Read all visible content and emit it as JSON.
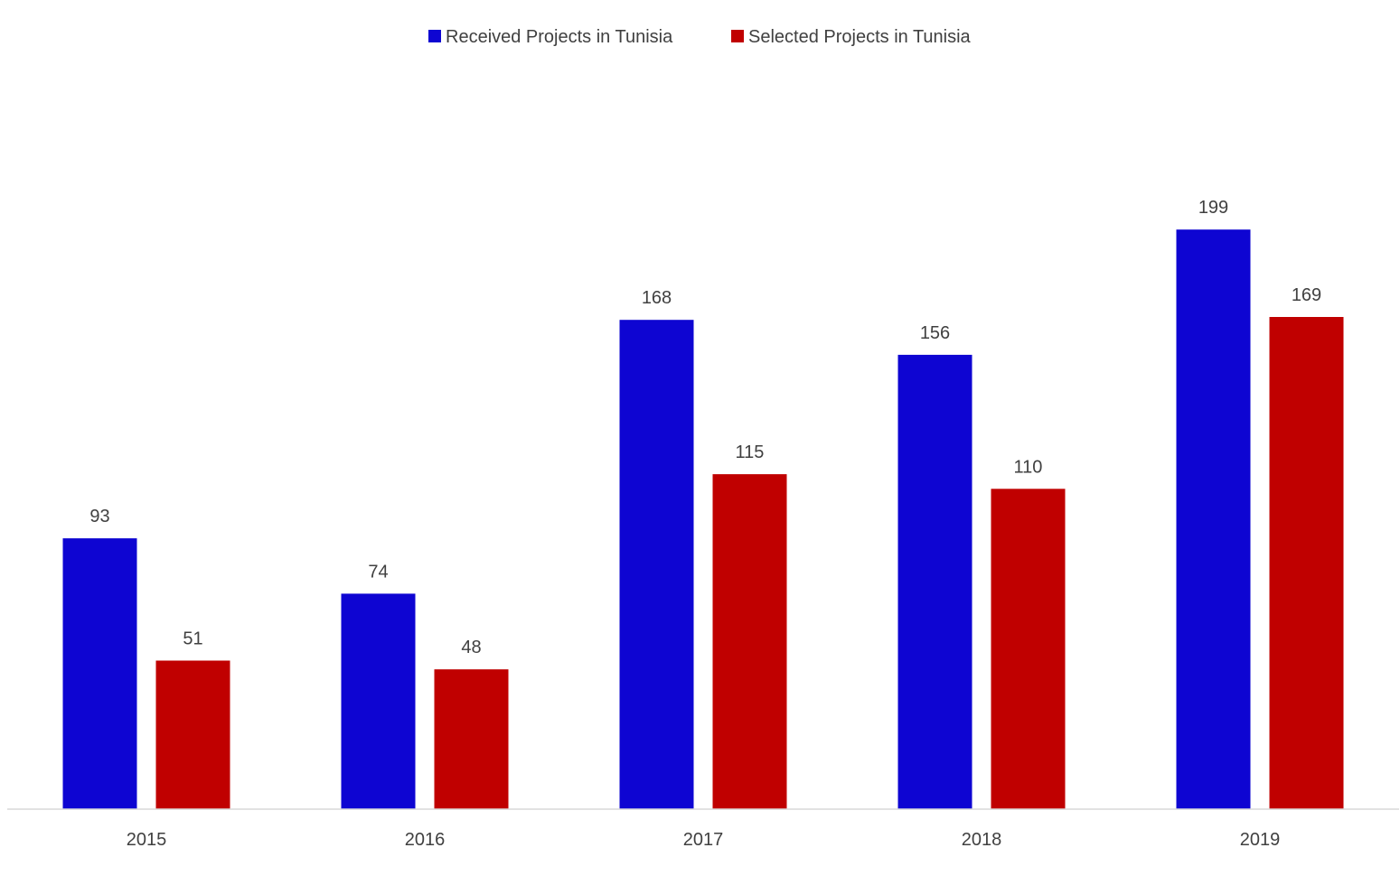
{
  "chart_data": {
    "type": "bar",
    "categories": [
      "2015",
      "2016",
      "2017",
      "2018",
      "2019"
    ],
    "series": [
      {
        "name": "Received Projects in Tunisia",
        "values": [
          93,
          74,
          168,
          156,
          199
        ],
        "color": "#0E05D2"
      },
      {
        "name": "Selected Projects in Tunisia",
        "values": [
          51,
          48,
          115,
          110,
          169
        ],
        "color": "#C00000"
      }
    ],
    "title": "",
    "xlabel": "",
    "ylabel": "",
    "ylim": [
      0,
      200
    ],
    "grid": false,
    "legend_position": "top-center",
    "axis_color": "#D9D9D9"
  }
}
